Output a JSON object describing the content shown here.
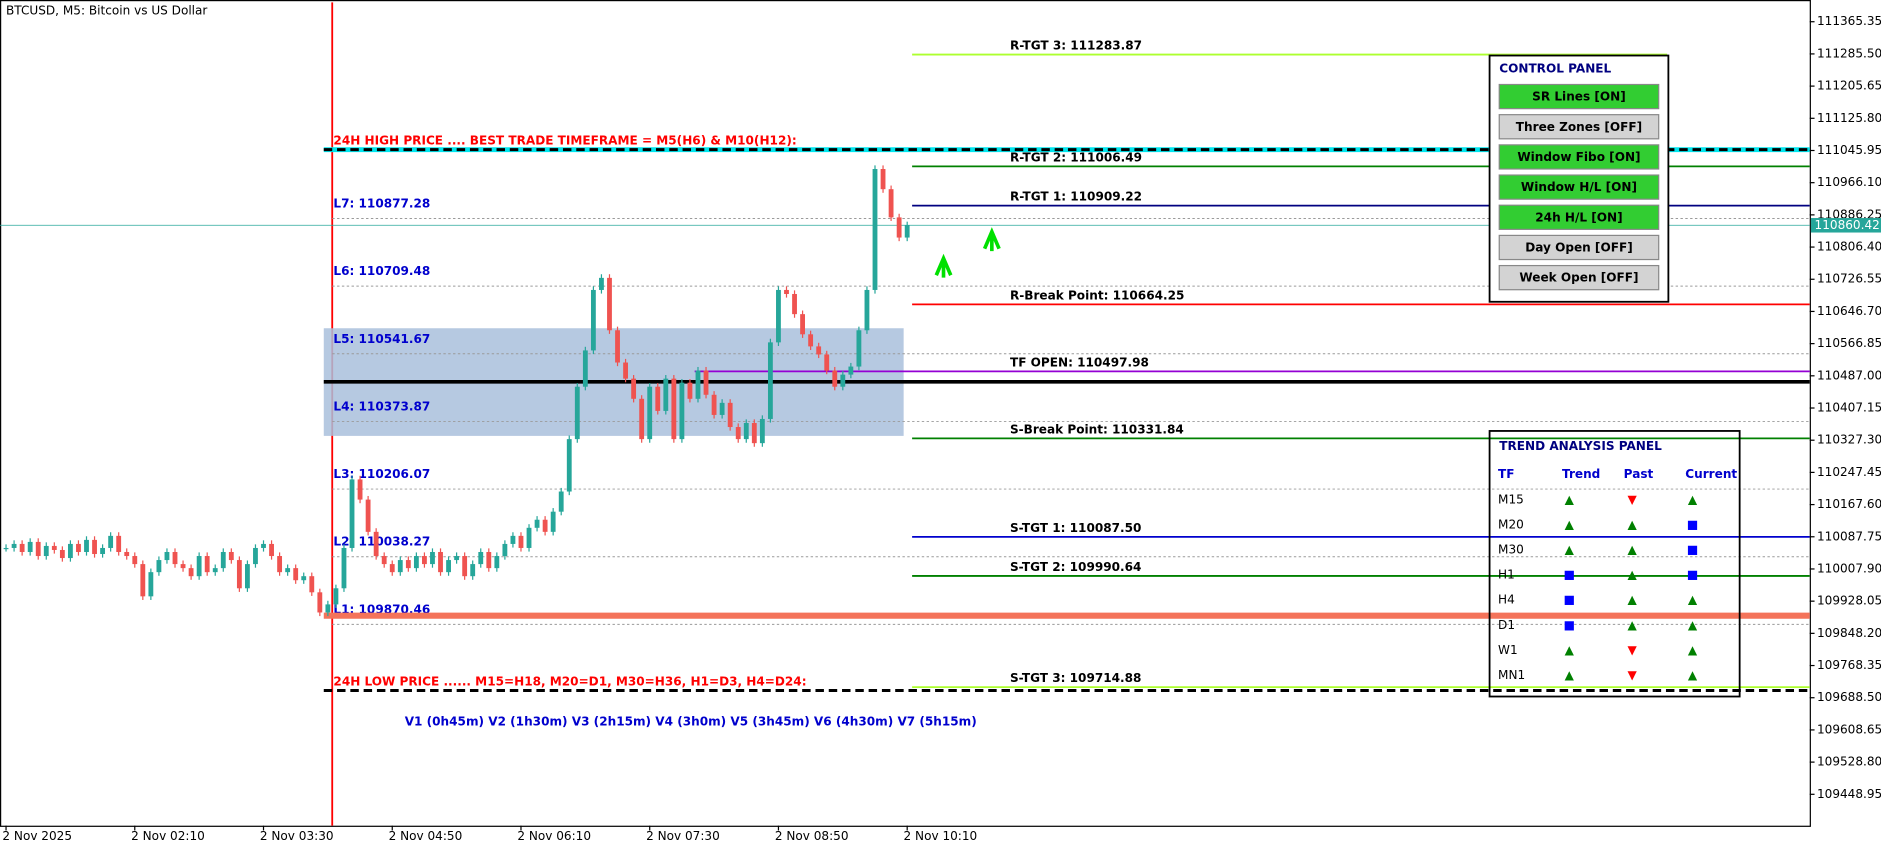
{
  "window_title": "BTCUSD, M5:  Bitcoin vs US Dollar",
  "chart": {
    "ylim": [
      109371.1,
      111419.25
    ],
    "yticks": [
      111365.35,
      {
        "value": 111285.5,
        "label": "111285.50"
      },
      111205.65,
      {
        "value": 111125.8,
        "label": "111125.80"
      },
      111045.95,
      {
        "value": 110966.1,
        "label": "110966.10"
      },
      110886.25,
      {
        "value": 110806.4,
        "label": "110806.40"
      },
      110726.55,
      {
        "value": 110646.7,
        "label": "110646.70"
      },
      110566.85,
      {
        "value": 110487,
        "label": "110487.00"
      },
      110407.15,
      {
        "value": 110327.3,
        "label": "110327.30"
      },
      110247.45,
      {
        "value": 110167.6,
        "label": "110167.60"
      },
      110087.75,
      {
        "value": 110007.9,
        "label": "110007.90"
      },
      109928.05,
      {
        "value": 109848.2,
        "label": "109848.20"
      },
      109768.35,
      {
        "value": 109688.5,
        "label": "109688.50"
      },
      109608.65,
      {
        "value": 109528.8,
        "label": "109528.80"
      },
      109448.95
    ],
    "closes": [
      110060,
      110070,
      110050,
      110075,
      110040,
      110065,
      110055,
      110035,
      110070,
      110050,
      110080,
      110045,
      110060,
      110090,
      110050,
      110040,
      110020,
      109940,
      110000,
      110030,
      110050,
      110020,
      110010,
      109990,
      110040,
      110000,
      110010,
      110050,
      110030,
      109960,
      110020,
      110060,
      110070,
      110040,
      110000,
      110010,
      109980,
      109990,
      109950,
      109900,
      109920,
      109960,
      110060,
      110230,
      110180,
      110100,
      110040,
      110020,
      110000,
      110030,
      110010,
      110040,
      110020,
      110050,
      110000,
      110030,
      110040,
      109990,
      110020,
      110050,
      110010,
      110040,
      110070,
      110090,
      110060,
      110110,
      110130,
      110100,
      110150,
      110200,
      110330,
      110460,
      110550,
      110700,
      110730,
      110600,
      110520,
      110480,
      110430,
      110330,
      110460,
      110400,
      110480,
      110330,
      110470,
      110430,
      110500,
      110440,
      110390,
      110420,
      110360,
      110330,
      110370,
      110320,
      110380,
      110570,
      110700,
      110690,
      110640,
      110590,
      110560,
      110540,
      110500,
      110460,
      110490,
      110510,
      110600,
      110700,
      111000,
      110950,
      110880,
      110830,
      110860.42
    ],
    "current_price": 110860.42,
    "time_labels": [
      "2 Nov 2025",
      "2 Nov 02:10",
      "2 Nov 03:30",
      "2 Nov 04:50",
      "2 Nov 06:10",
      "2 Nov 07:30",
      "2 Nov 08:50",
      "2 Nov 10:10"
    ],
    "fib_levels": [
      {
        "label": "L7: 110877.28",
        "value": 110877.28
      },
      {
        "label": "L6: 110709.48",
        "value": 110709.48
      },
      {
        "label": "L5: 110541.67",
        "value": 110541.67
      },
      {
        "label": "L4: 110373.87",
        "value": 110373.87
      },
      {
        "label": "L3: 110206.07",
        "value": 110206.07
      },
      {
        "label": "L2: 110038.27",
        "value": 110038.27
      },
      {
        "label": "L1: 109870.46",
        "value": 109870.46
      }
    ],
    "target_levels": [
      {
        "label": "R-TGT  3: 111283.87",
        "value": 111283.87,
        "color": "#adff2f"
      },
      {
        "label": "R-TGT  2: 111006.49",
        "value": 111006.49,
        "color": "#008000"
      },
      {
        "label": "R-TGT  1: 110909.22",
        "value": 110909.22,
        "color": "#000080"
      },
      {
        "label": "R-Break Point: 110664.25",
        "value": 110664.25,
        "color": "#ff0000"
      },
      {
        "label": "TF OPEN: 110497.98",
        "value": 110497.98,
        "color": "#9400d3"
      },
      {
        "label": "S-Break Point: 110331.84",
        "value": 110331.84,
        "color": "#008000"
      },
      {
        "label": "S-TGT  1: 110087.50",
        "value": 110087.5,
        "color": "#0000cd"
      },
      {
        "label": "S-TGT  2: 109990.64",
        "value": 109990.64,
        "color": "#008000"
      },
      {
        "label": "S-TGT  3: 109714.88",
        "value": 109714.88,
        "color": "#adff2f"
      }
    ],
    "high_24h": {
      "label": "24H HIGH PRICE ....   BEST TRADE TIMEFRAME = M5(H6) & M10(H12):",
      "value": 111048
    },
    "low_24h": {
      "label": "24H LOW PRICE ......  M15=H18, M20=D1, M30=H36, H1=D3, H4=D24:",
      "value": 109706.5
    },
    "zone": [
      110338,
      110605
    ],
    "mid_line": 110472,
    "orange_line": 109892,
    "cycle_text": "V1 (0h45m) V2 (1h30m) V3 (2h15m) V4 (3h0m)   V5 (3h45m) V6 (4h30m) V7 (5h15m)"
  },
  "control_panel": {
    "title": "CONTROL PANEL",
    "buttons": [
      {
        "label": "SR Lines [ON]",
        "on": true
      },
      {
        "label": "Three Zones [OFF]",
        "on": false
      },
      {
        "label": "Window Fibo [ON]",
        "on": true
      },
      {
        "label": "Window H/L [ON]",
        "on": true
      },
      {
        "label": "24h H/L [ON]",
        "on": true
      },
      {
        "label": "Day Open [OFF]",
        "on": false
      },
      {
        "label": "Week Open [OFF]",
        "on": false
      }
    ]
  },
  "trend_panel": {
    "title": "TREND ANALYSIS PANEL",
    "headers": [
      "TF",
      "Trend",
      "Past",
      "Current"
    ],
    "rows": [
      [
        "M15",
        "▲",
        "▼",
        "▲"
      ],
      [
        "M20",
        "▲",
        "▲",
        "■"
      ],
      [
        "M30",
        "▲",
        "▲",
        "■"
      ],
      [
        "H1",
        "■",
        "▲",
        "■"
      ],
      [
        "H4",
        "■",
        "▲",
        "▲"
      ],
      [
        "D1",
        "■",
        "▲",
        "▲"
      ],
      [
        "W1",
        "▲",
        "▼",
        "▲"
      ],
      [
        "MN1",
        "▲",
        "▼",
        "▲"
      ]
    ]
  }
}
